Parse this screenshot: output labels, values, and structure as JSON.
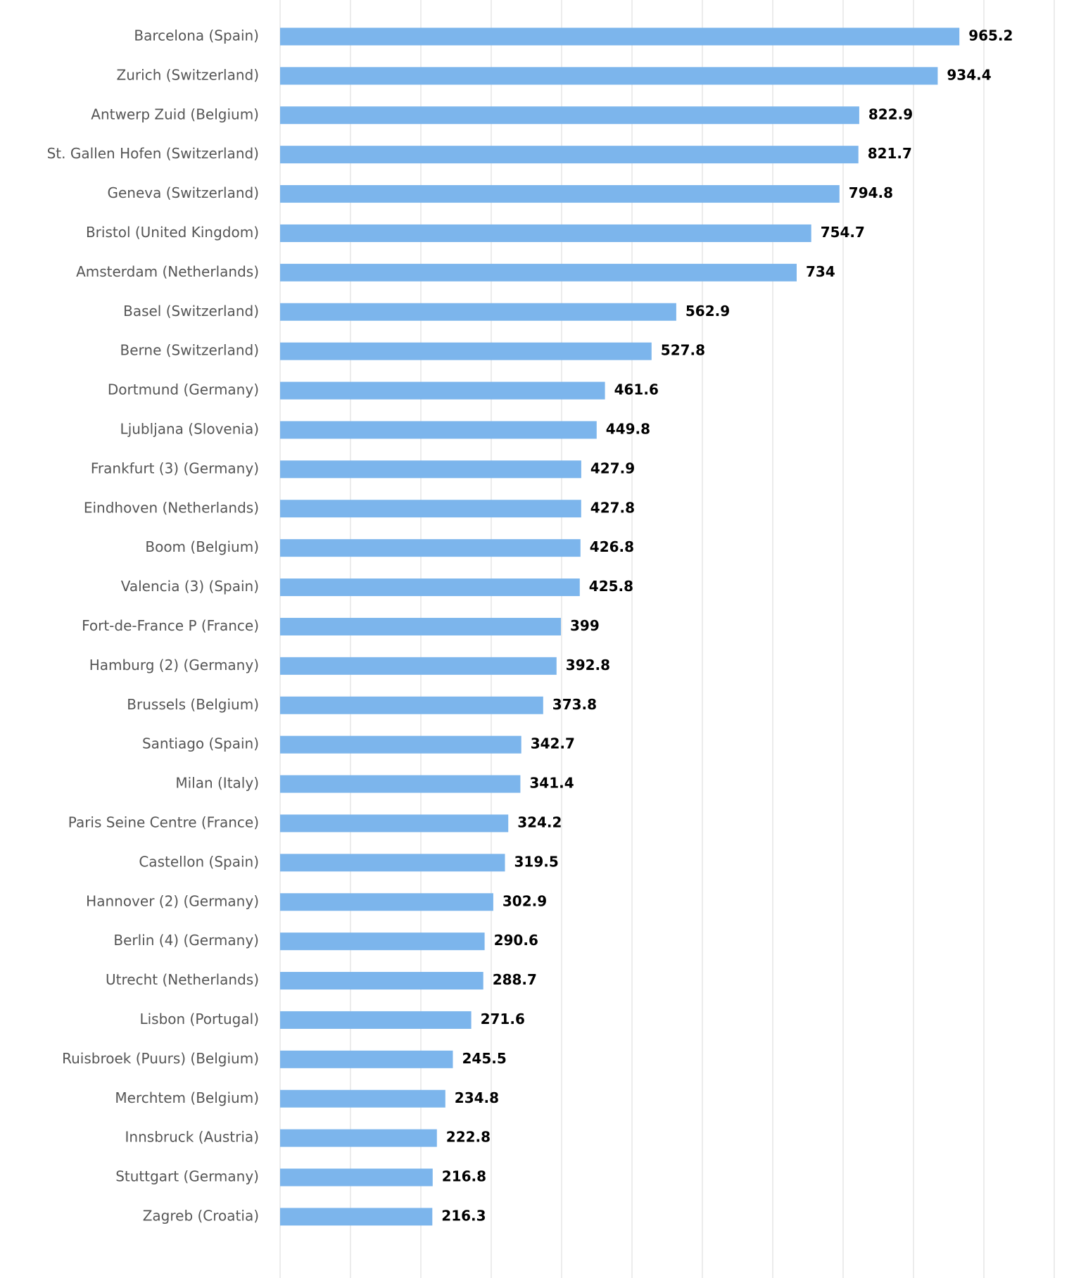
{
  "chart_data": {
    "type": "hbar",
    "color": "#7cb5ec",
    "grid": true,
    "categories": [
      "Barcelona (Spain)",
      "Zurich (Switzerland)",
      "Antwerp Zuid (Belgium)",
      "St. Gallen Hofen (Switzerland)",
      "Geneva (Switzerland)",
      "Bristol (United Kingdom)",
      "Amsterdam (Netherlands)",
      "Basel (Switzerland)",
      "Berne (Switzerland)",
      "Dortmund (Germany)",
      "Ljubljana (Slovenia)",
      "Frankfurt (3) (Germany)",
      "Eindhoven (Netherlands)",
      "Boom (Belgium)",
      "Valencia (3) (Spain)",
      "Fort-de-France P (France)",
      "Hamburg (2) (Germany)",
      "Brussels (Belgium)",
      "Santiago (Spain)",
      "Milan (Italy)",
      "Paris Seine Centre (France)",
      "Castellon (Spain)",
      "Hannover (2) (Germany)",
      "Berlin (4) (Germany)",
      "Utrecht (Netherlands)",
      "Lisbon (Portugal)",
      "Ruisbroek (Puurs) (Belgium)",
      "Merchtem (Belgium)",
      "Innsbruck (Austria)",
      "Stuttgart (Germany)",
      "Zagreb (Croatia)"
    ],
    "values": [
      965.2,
      934.4,
      822.9,
      821.7,
      794.8,
      754.7,
      734,
      562.9,
      527.8,
      461.6,
      449.8,
      427.9,
      427.8,
      426.8,
      425.8,
      399,
      392.8,
      373.8,
      342.7,
      341.4,
      324.2,
      319.5,
      302.9,
      290.6,
      288.7,
      271.6,
      245.5,
      234.8,
      222.8,
      216.8,
      216.3
    ],
    "xlim": [
      0,
      1100
    ],
    "xticks": [
      0,
      100,
      200,
      300,
      400,
      500,
      600,
      700,
      800,
      900,
      1000,
      1100
    ]
  }
}
